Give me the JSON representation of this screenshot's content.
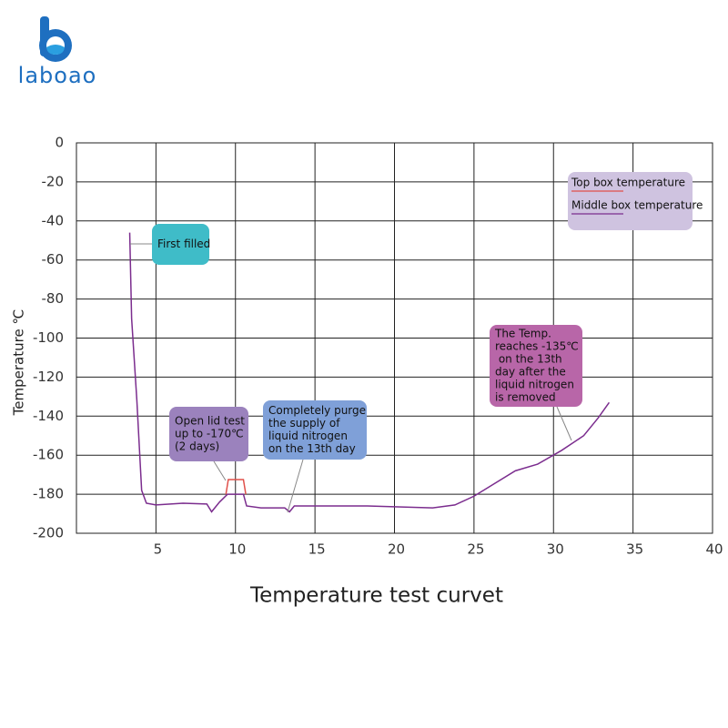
{
  "logo": "laboao",
  "chart_data": {
    "type": "line",
    "title": "Temperature test curvet",
    "y_label": "Temperature ℃",
    "xlim": [
      0,
      40
    ],
    "xticks": [
      5,
      10,
      15,
      20,
      25,
      30,
      35,
      40
    ],
    "ylim": [
      -200,
      0
    ],
    "yticks": [
      0,
      -20,
      -40,
      -60,
      -80,
      -100,
      -120,
      -140,
      -160,
      -180,
      -200
    ],
    "grid": true,
    "legend": "top-right",
    "series": [
      {
        "name": "Top box temperature",
        "color": "#e0504a",
        "x": [
          9.4,
          9.55,
          10.5,
          10.65
        ],
        "values": [
          -180,
          -172.5,
          -172.5,
          -180
        ]
      },
      {
        "name": "Middle box temperature",
        "color": "#7b2d8e",
        "x": [
          3.35,
          3.47,
          3.8,
          4.1,
          4.4,
          5,
          6.7,
          8.2,
          8.5,
          9,
          9.5,
          9.9,
          10.5,
          10.7,
          11.6,
          13.1,
          13.4,
          13.7,
          18.3,
          22.4,
          23.8,
          25,
          27.6,
          29,
          30.5,
          31.9,
          32.8,
          33.5
        ],
        "values": [
          -46,
          -90,
          -132,
          -178,
          -184.6,
          -185.5,
          -184.6,
          -185,
          -189,
          -184,
          -180,
          -180,
          -180,
          -186,
          -187,
          -187,
          -189,
          -186,
          -186,
          -187,
          -185.5,
          -181,
          -168,
          -164.6,
          -157.6,
          -150,
          -141,
          -133
        ]
      }
    ],
    "annotations": [
      {
        "lines": [
          "First filled"
        ],
        "color": "#3fbcc8"
      },
      {
        "lines": [
          "Open lid test",
          "up to -170℃",
          "(2 days)"
        ],
        "color": "#9b82bd"
      },
      {
        "lines": [
          "Completely purge",
          "the supply of",
          "liquid nitrogen",
          "on the 13th day"
        ],
        "color": "#7fa0d8"
      },
      {
        "lines": [
          "The Temp.",
          "reaches -135℃",
          " on the 13th",
          "day after the",
          "liquid nitrogen",
          "is removed"
        ],
        "color": "#b866a8"
      }
    ]
  }
}
